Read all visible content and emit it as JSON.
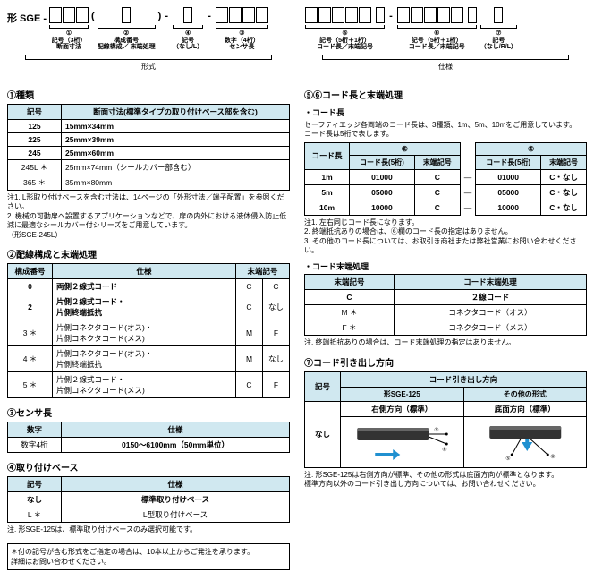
{
  "top_left": {
    "prefix": "形 SGE -",
    "seg1": {
      "boxes": 3,
      "circ": "①",
      "label1": "記号（3桁）",
      "label2": "断面寸法"
    },
    "paren_open": "(",
    "paren_close": ")",
    "seg2": {
      "boxes": 1,
      "circ": "②",
      "label1": "構成番号",
      "label2": "配線構成／\n末端処理"
    },
    "seg3": {
      "boxes": 4,
      "circ": "③",
      "label1": "数字（4桁）",
      "label2": "センサ長"
    },
    "seg4": {
      "boxes": 1,
      "circ": "④",
      "label1": "記号",
      "label2": "（なし/L）"
    },
    "bracket_label": "形式"
  },
  "top_right": {
    "seg5": {
      "boxes": 5,
      "extra": 1,
      "circ": "⑤",
      "label1": "記号（5桁＋1桁）",
      "label2": "コード長／末端記号"
    },
    "seg6": {
      "boxes": 5,
      "extra": 1,
      "circ": "⑥",
      "label1": "記号（5桁＋1桁）",
      "label2": "コード長／末端記号"
    },
    "seg7": {
      "boxes": 1,
      "circ": "⑦",
      "label1": "記号",
      "label2": "（なし/R/L）"
    },
    "bracket_label": "仕様"
  },
  "s1": {
    "title": "①種類",
    "th1": "記号",
    "th2": "断面寸法(標準タイプの取り付けベース部を含む)",
    "rows": [
      {
        "a": "125",
        "b": "15mm×34mm"
      },
      {
        "a": "225",
        "b": "25mm×39mm"
      },
      {
        "a": "245",
        "b": "25mm×60mm"
      },
      {
        "a": "245L ＊",
        "b": "25mm×74mm（シールカバー部含む）"
      },
      {
        "a": "365 ＊",
        "b": "35mm×80mm"
      }
    ],
    "notes": "注1. L形取り付けベースを含む寸法は、14ページの「外形寸法／端子配置」を参照ください。\n2. 機械の可動扉へ設置するアプリケーションなどで、扉の内外における液体侵入防止低減に最適なシールカバー付シリーズをご用意しています。\n（形SGE-245L）"
  },
  "s2": {
    "title": "②配線構成と末端処理",
    "th1": "構成番号",
    "th2": "仕様",
    "th3": "末端記号",
    "rows": [
      {
        "a": "0",
        "b": "両側２線式コード",
        "c": "C",
        "d": "C"
      },
      {
        "a": "2",
        "b": "片側２線式コード・\n片側終端抵抗",
        "c": "C",
        "d": "なし"
      },
      {
        "a": "3 ＊",
        "b": "片側コネクタコード(オス)・\n片側コネクタコード(メス)",
        "c": "M",
        "d": "F"
      },
      {
        "a": "4 ＊",
        "b": "片側コネクタコード(オス)・\n片側終端抵抗",
        "c": "M",
        "d": "なし"
      },
      {
        "a": "5 ＊",
        "b": "片側２線式コード・\n片側コネクタコード(メス)",
        "c": "C",
        "d": "F"
      }
    ]
  },
  "s3": {
    "title": "③センサ長",
    "th1": "数字",
    "th2": "仕様",
    "row": {
      "a": "数字4桁",
      "b": "0150～6100mm（50mm単位）"
    }
  },
  "s4": {
    "title": "④取り付けベース",
    "th1": "記号",
    "th2": "仕様",
    "rows": [
      {
        "a": "なし",
        "b": "標準取り付けベース"
      },
      {
        "a": "L ＊",
        "b": "L型取り付けベース"
      }
    ],
    "note": "注. 形SGE-125は、標準取り付けベースのみ選択可能です。"
  },
  "foot": "＊付の記号が含む形式をご指定の場合は、10本以上からご発注を承ります。\n詳細はお問い合わせください。",
  "s56": {
    "title": "⑤⑥コード長と末端処理",
    "sub1": "・コード長",
    "intro": "セーフティエッジ各両端のコード長は、3種類、1m、5m、10mをご用意しています。\nコード長は5桁で表します。",
    "th_main": "コード長",
    "th5": "⑤",
    "th6": "⑥",
    "th_code": "コード長(5桁)",
    "th_end": "末端記号",
    "rows": [
      {
        "len": "1m",
        "c5": "01000",
        "e5": "C",
        "dash": "—",
        "c6": "01000",
        "e6": "C・なし"
      },
      {
        "len": "5m",
        "c5": "05000",
        "e5": "C",
        "dash": "—",
        "c6": "05000",
        "e6": "C・なし"
      },
      {
        "len": "10m",
        "c5": "10000",
        "e5": "C",
        "dash": "—",
        "c6": "10000",
        "e6": "C・なし"
      }
    ],
    "notes56": "注1. 左右同じコード長になります。\n2. 終端抵抗ありの場合は、⑥欄のコード長の指定はありません。\n3. その他のコード長については、お取引き商社または弊社営業にお問い合わせください。",
    "sub2": "・コード末端処理",
    "th_end2": "末端記号",
    "th_proc": "コード末端処理",
    "rows2": [
      {
        "a": "C",
        "b": "２線コード"
      },
      {
        "a": "M ＊",
        "b": "コネクタコード（オス）"
      },
      {
        "a": "F ＊",
        "b": "コネクタコード（メス）"
      }
    ],
    "note_end": "注. 終端抵抗ありの場合は、コード末端処理の指定はありません。"
  },
  "s7": {
    "title": "⑦コード引き出し方向",
    "th1": "記号",
    "th2": "コード引き出し方向",
    "sub1": "形SGE-125",
    "sub2": "その他の形式",
    "row_label": "なし",
    "d1": "右側方向（標準）",
    "d2": "底面方向（標準）",
    "note": "注. 形SGE-125は右側方向が標準、その他の形式は底面方向が標準となります。\n標準方向以外のコード引き出し方向については、お問い合わせください。"
  },
  "colors": {
    "header_bg": "#d0e8f0",
    "arrow": "#2090d0"
  }
}
